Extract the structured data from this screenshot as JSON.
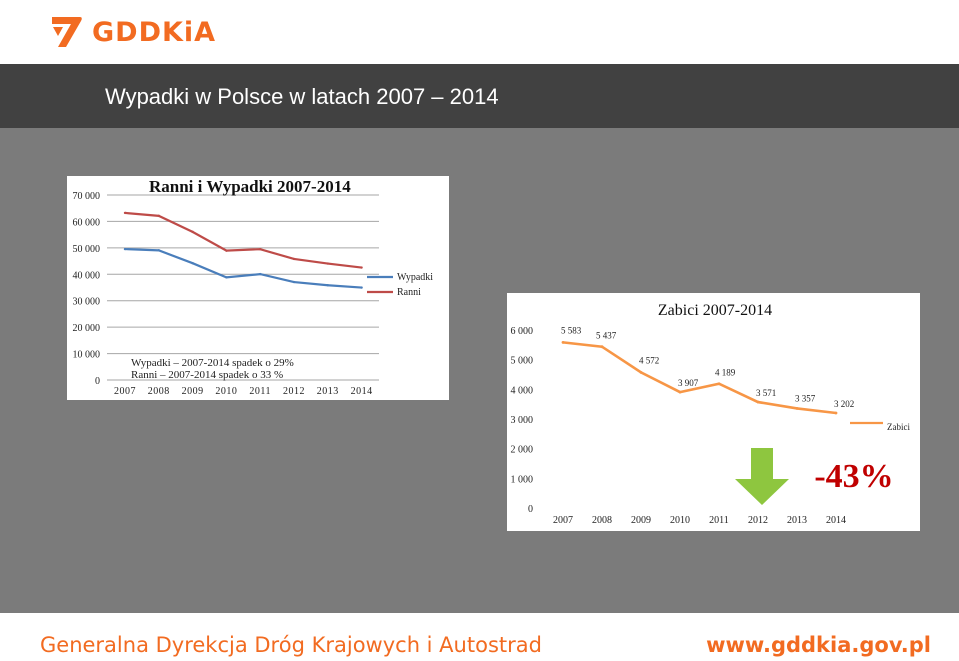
{
  "header": {
    "logo_text": "GDDKiA",
    "brand_color": "#f26b21"
  },
  "slide": {
    "title": "Wypadki w Polsce w latach 2007 – 2014"
  },
  "footer": {
    "left_text": "Generalna Dyrekcja Dróg Krajowych i Autostrad",
    "right_text": "www.gddkia.gov.pl"
  },
  "chart_data": [
    {
      "type": "line",
      "title": "Ranni i Wypadki 2007-2014",
      "categories": [
        "2007",
        "2008",
        "2009",
        "2010",
        "2011",
        "2012",
        "2013",
        "2014"
      ],
      "ylim": [
        0,
        70000
      ],
      "yticks": [
        "0",
        "10 000",
        "20 000",
        "30 000",
        "40 000",
        "50 000",
        "60 000",
        "70 000"
      ],
      "grid": true,
      "legend_placement": "right",
      "series": [
        {
          "name": "Wypadki",
          "color": "#4a7ebb",
          "values": [
            49536,
            49054,
            44196,
            38832,
            40065,
            37062,
            35847,
            34970
          ]
        },
        {
          "name": "Ranni",
          "color": "#be4b48",
          "values": [
            63224,
            62097,
            56046,
            48952,
            49501,
            45792,
            44059,
            42545
          ]
        }
      ],
      "annotations": [
        "Wypadki  – 2007-2014 spadek o 29%",
        "Ranni  – 2007-2014 spadek o 33 %"
      ]
    },
    {
      "type": "line",
      "title": "Zabici 2007-2014",
      "categories": [
        "2007",
        "2008",
        "2009",
        "2010",
        "2011",
        "2012",
        "2013",
        "2014"
      ],
      "ylim": [
        0,
        6000
      ],
      "yticks": [
        "0",
        "1 000",
        "2 000",
        "3 000",
        "4 000",
        "5 000",
        "6 000"
      ],
      "grid": false,
      "legend_placement": "right",
      "series": [
        {
          "name": "Zabici",
          "color": "#f79646",
          "values": [
            5583,
            5437,
            4572,
            3907,
            4189,
            3571,
            3357,
            3202
          ]
        }
      ],
      "data_labels": [
        "5 583",
        "5 437",
        "4 572",
        "3 907",
        "4 189",
        "3 571",
        "3 357",
        "3 202"
      ],
      "annotation": "-43%",
      "annotation_color": "#c00000",
      "arrow_color": "#8ec63f"
    }
  ]
}
